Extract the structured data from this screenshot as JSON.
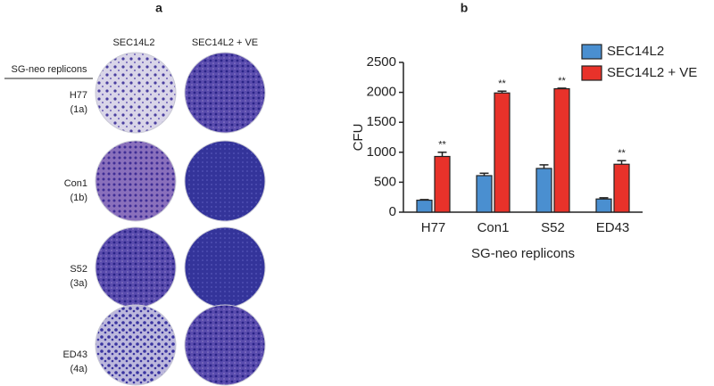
{
  "panel_a": {
    "label": "a",
    "columns": [
      "SEC14L2",
      "SEC14L2 + VE"
    ],
    "row_header": "SG-neo replicons",
    "rows": [
      {
        "name": "H77",
        "genotype": "(1a)"
      },
      {
        "name": "Con1",
        "genotype": "(1b)"
      },
      {
        "name": "S52",
        "genotype": "(3a)"
      },
      {
        "name": "ED43",
        "genotype": "(4a)"
      }
    ]
  },
  "chart_data": {
    "type": "bar",
    "label": "b",
    "xlabel": "SG-neo replicons",
    "ylabel": "CFU",
    "categories": [
      "H77",
      "Con1",
      "S52",
      "ED43"
    ],
    "series": [
      {
        "name": "SEC14L2",
        "color": "#4a8fd0",
        "values": [
          200,
          610,
          730,
          220
        ],
        "errors": [
          10,
          40,
          60,
          20
        ]
      },
      {
        "name": "SEC14L2 + VE",
        "color": "#e8322a",
        "values": [
          930,
          1990,
          2060,
          800
        ],
        "errors": [
          70,
          30,
          10,
          60
        ],
        "significance": [
          "**",
          "**",
          "**",
          "**"
        ]
      }
    ],
    "ylim": [
      0,
      2500
    ],
    "yticks": [
      0,
      500,
      1000,
      1500,
      2000,
      2500
    ],
    "legend": "top-right"
  }
}
